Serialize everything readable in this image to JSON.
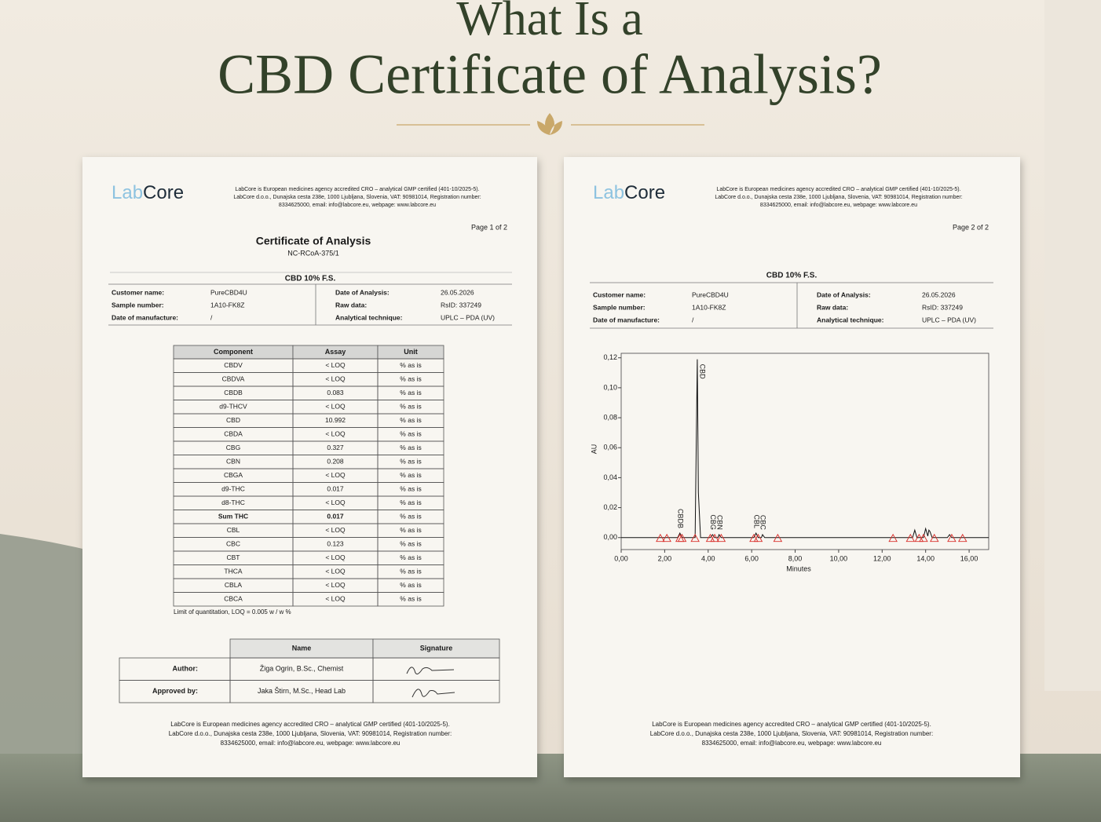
{
  "heading": {
    "line1": "What Is a",
    "line2": "CBD Certificate of Analysis?"
  },
  "pages": [
    {
      "logo": {
        "lab": "Lab",
        "core": "Core"
      },
      "header_lines": [
        "LabCore is European medicines agency accredited CRO – analytical GMP certified (401-10/2025-5).",
        "LabCore d.o.o., Dunajska cesta 238e, 1000 Ljubljana, Slovenia, VAT: 90981014, Registration number:",
        "8334625000, email: info@labcore.eu, webpage: www.labcore.eu"
      ],
      "page_number": "Page 1 of 2",
      "title": "Certificate of Analysis",
      "reference": "NC-RCoA-375/1",
      "product": "CBD 10% F.S.",
      "info_left": [
        [
          "Customer name:",
          "PureCBD4U"
        ],
        [
          "Sample number:",
          "1A10-FK8Z"
        ],
        [
          "Date of manufacture:",
          "/"
        ]
      ],
      "info_right": [
        [
          "Date of Analysis:",
          "26.05.2026"
        ],
        [
          "Raw data:",
          "RsID: 337249"
        ],
        [
          "Analytical technique:",
          "UPLC – PDA (UV)"
        ]
      ],
      "table": {
        "header": [
          "Component",
          "Assay",
          "Unit"
        ],
        "rows": [
          [
            "CBDV",
            "< LOQ",
            "% as is"
          ],
          [
            "CBDVA",
            "< LOQ",
            "% as is"
          ],
          [
            "CBDB",
            "0.083",
            "% as is"
          ],
          [
            "d9-THCV",
            "< LOQ",
            "% as is"
          ],
          [
            "CBD",
            "10.992",
            "% as is"
          ],
          [
            "CBDA",
            "< LOQ",
            "% as is"
          ],
          [
            "CBG",
            "0.327",
            "% as is"
          ],
          [
            "CBN",
            "0.208",
            "% as is"
          ],
          [
            "CBGA",
            "< LOQ",
            "% as is"
          ],
          [
            "d9-THC",
            "0.017",
            "% as is"
          ],
          [
            "d8-THC",
            "< LOQ",
            "% as is"
          ],
          [
            "Sum THC",
            "0.017",
            "% as is"
          ],
          [
            "CBL",
            "< LOQ",
            "% as is"
          ],
          [
            "CBC",
            "0.123",
            "% as is"
          ],
          [
            "CBT",
            "< LOQ",
            "% as is"
          ],
          [
            "THCA",
            "< LOQ",
            "% as is"
          ],
          [
            "CBLA",
            "< LOQ",
            "% as is"
          ],
          [
            "CBCA",
            "< LOQ",
            "% as is"
          ]
        ],
        "bold_rows": [
          11
        ]
      },
      "note": "Limit of quantitation, LOQ = 0.005 w / w %",
      "signatures": {
        "header": [
          "Name",
          "Signature"
        ],
        "rows": [
          [
            "Author:",
            "Žiga Ogrin, B.Sc., Chemist"
          ],
          [
            "Approved by:",
            "Jaka Štirn, M.Sc., Head Lab"
          ]
        ]
      },
      "footer_lines": [
        "LabCore is European medicines agency accredited CRO – analytical GMP certified (401-10/2025-5).",
        "LabCore d.o.o., Dunajska cesta 238e, 1000 Ljubljana, Slovenia, VAT: 90981014, Registration number:",
        "8334625000, email: info@labcore.eu, webpage: www.labcore.eu"
      ]
    },
    {
      "logo": {
        "lab": "Lab",
        "core": "Core"
      },
      "header_lines": [
        "LabCore is European medicines agency accredited CRO – analytical GMP certified (401-10/2025-5).",
        "LabCore d.o.o., Dunajska cesta 238e, 1000 Ljubljana, Slovenia, VAT: 90981014, Registration number:",
        "8334625000, email: info@labcore.eu, webpage: www.labcore.eu"
      ],
      "page_number": "Page 2 of 2",
      "product": "CBD 10% F.S.",
      "info_left": [
        [
          "Customer name:",
          "PureCBD4U"
        ],
        [
          "Sample number:",
          "1A10-FK8Z"
        ],
        [
          "Date of manufacture:",
          "/"
        ]
      ],
      "info_right": [
        [
          "Date of Analysis:",
          "26.05.2026"
        ],
        [
          "Raw data:",
          "RsID: 337249"
        ],
        [
          "Analytical technique:",
          "UPLC – PDA (UV)"
        ]
      ],
      "footer_lines": [
        "LabCore is European medicines agency accredited CRO – analytical GMP certified (401-10/2025-5).",
        "LabCore d.o.o., Dunajska cesta 238e, 1000 Ljubljana, Slovenia, VAT: 90981014, Registration number:",
        "8334625000, email: info@labcore.eu, webpage: www.labcore.eu"
      ]
    }
  ],
  "chart_data": {
    "type": "line",
    "xlabel": "Minutes",
    "ylabel": "AU",
    "color": "#111111",
    "x": [
      0,
      1.8,
      2.6,
      2.7,
      2.8,
      3.4,
      3.45,
      3.5,
      3.55,
      3.65,
      4.1,
      4.2,
      4.3,
      4.45,
      4.5,
      4.6,
      6.1,
      6.2,
      6.3,
      6.45,
      6.5,
      6.6,
      13.4,
      13.5,
      13.6,
      13.9,
      14.0,
      14.1,
      14.15,
      14.2,
      14.3,
      15.0,
      15.1,
      15.2,
      16.9
    ],
    "values": [
      0,
      0,
      0,
      0.003,
      0,
      0,
      0.06,
      0.119,
      0.03,
      0,
      0,
      0.002,
      0,
      0,
      0.002,
      0,
      0,
      0.003,
      0,
      0,
      0.002,
      0,
      0,
      0.005,
      0,
      0,
      0.006,
      0.001,
      0.005,
      0.004,
      0,
      0,
      0.002,
      0,
      0
    ],
    "peaks": [
      {
        "label": "CBDB",
        "x": 2.7,
        "y": 0.003
      },
      {
        "label": "CBD",
        "x": 3.5,
        "y": 0.119
      },
      {
        "label": "CBG",
        "x": 4.2,
        "y": 0.002
      },
      {
        "label": "CBN",
        "x": 4.5,
        "y": 0.002
      },
      {
        "label": "CBL",
        "x": 6.2,
        "y": 0.003
      },
      {
        "label": "CBC",
        "x": 6.5,
        "y": 0.002
      }
    ],
    "integration_marks": [
      1.8,
      2.1,
      2.7,
      2.8,
      3.4,
      4.1,
      4.3,
      4.6,
      6.1,
      6.3,
      7.2,
      12.5,
      13.3,
      13.7,
      13.9,
      14.4,
      15.2,
      15.7
    ],
    "marks_color": "#d9302c",
    "xlim": [
      0,
      16.9
    ],
    "ylim": [
      -0.008,
      0.123
    ],
    "xticks": [
      {
        "value": 0,
        "label": "0,00"
      },
      {
        "value": 2,
        "label": "2,00"
      },
      {
        "value": 4,
        "label": "4,00"
      },
      {
        "value": 6,
        "label": "6,00"
      },
      {
        "value": 8,
        "label": "8,00"
      },
      {
        "value": 10,
        "label": "10,00"
      },
      {
        "value": 12,
        "label": "12,00"
      },
      {
        "value": 14,
        "label": "14,00"
      },
      {
        "value": 16,
        "label": "16,00"
      }
    ],
    "yticks": [
      {
        "value": 0,
        "label": "0,00"
      },
      {
        "value": 0.02,
        "label": "0,02"
      },
      {
        "value": 0.04,
        "label": "0,04"
      },
      {
        "value": 0.06,
        "label": "0,06"
      },
      {
        "value": 0.08,
        "label": "0,08"
      },
      {
        "value": 0.1,
        "label": "0,10"
      },
      {
        "value": 0.12,
        "label": "0,12"
      }
    ]
  }
}
